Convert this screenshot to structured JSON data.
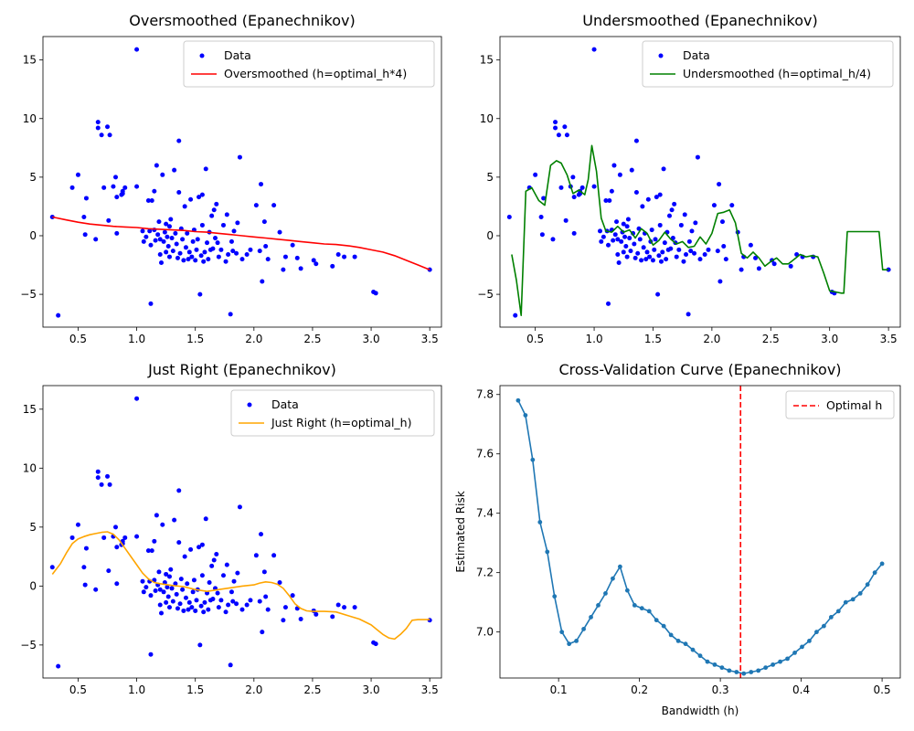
{
  "chart_data": [
    {
      "id": "oversmoothed",
      "type": "scatter",
      "title": "Oversmoothed (Epanechnikov)",
      "xlim": [
        0.2,
        3.6
      ],
      "ylim": [
        -7.8,
        17
      ],
      "xticks": [
        0.5,
        1.0,
        1.5,
        2.0,
        2.5,
        3.0,
        3.5
      ],
      "xticklabels": [
        "0.5",
        "1.0",
        "1.5",
        "2.0",
        "2.5",
        "3.0",
        "3.5"
      ],
      "yticks": [
        -5,
        0,
        5,
        10,
        15
      ],
      "yticklabels": [
        "−5",
        "0",
        "5",
        "10",
        "15"
      ],
      "legend_position": "top-right",
      "scatter_name": "Data",
      "scatter_color": "#0000ff",
      "curve_name": "Oversmoothed (h=optimal_h*4)",
      "curve_color": "#ff0000",
      "curve": [
        [
          0.28,
          1.6
        ],
        [
          0.4,
          1.35
        ],
        [
          0.5,
          1.15
        ],
        [
          0.6,
          1.0
        ],
        [
          0.7,
          0.9
        ],
        [
          0.8,
          0.8
        ],
        [
          0.9,
          0.75
        ],
        [
          1.0,
          0.7
        ],
        [
          1.1,
          0.6
        ],
        [
          1.2,
          0.55
        ],
        [
          1.3,
          0.5
        ],
        [
          1.4,
          0.45
        ],
        [
          1.5,
          0.35
        ],
        [
          1.6,
          0.3
        ],
        [
          1.7,
          0.2
        ],
        [
          1.8,
          0.1
        ],
        [
          1.9,
          0.0
        ],
        [
          2.0,
          -0.1
        ],
        [
          2.1,
          -0.2
        ],
        [
          2.2,
          -0.3
        ],
        [
          2.3,
          -0.4
        ],
        [
          2.4,
          -0.5
        ],
        [
          2.5,
          -0.6
        ],
        [
          2.6,
          -0.7
        ],
        [
          2.7,
          -0.75
        ],
        [
          2.8,
          -0.85
        ],
        [
          2.9,
          -1.0
        ],
        [
          3.0,
          -1.2
        ],
        [
          3.1,
          -1.4
        ],
        [
          3.2,
          -1.7
        ],
        [
          3.3,
          -2.1
        ],
        [
          3.4,
          -2.5
        ],
        [
          3.5,
          -2.9
        ]
      ]
    },
    {
      "id": "undersmoothed",
      "type": "scatter",
      "title": "Undersmoothed (Epanechnikov)",
      "xlim": [
        0.2,
        3.6
      ],
      "ylim": [
        -7.8,
        17
      ],
      "xticks": [
        0.5,
        1.0,
        1.5,
        2.0,
        2.5,
        3.0,
        3.5
      ],
      "xticklabels": [
        "0.5",
        "1.0",
        "1.5",
        "2.0",
        "2.5",
        "3.0",
        "3.5"
      ],
      "yticks": [
        -5,
        0,
        5,
        10,
        15
      ],
      "yticklabels": [
        "−5",
        "0",
        "5",
        "10",
        "15"
      ],
      "legend_position": "top-right",
      "scatter_name": "Data",
      "scatter_color": "#0000ff",
      "curve_name": "Undersmoothed (h=optimal_h/4)",
      "curve_color": "#008000",
      "curve": [
        [
          0.3,
          -1.6
        ],
        [
          0.34,
          -3.8
        ],
        [
          0.38,
          -6.8
        ],
        [
          0.42,
          3.8
        ],
        [
          0.47,
          4.1
        ],
        [
          0.53,
          3.0
        ],
        [
          0.58,
          2.6
        ],
        [
          0.63,
          6.0
        ],
        [
          0.68,
          6.4
        ],
        [
          0.72,
          6.2
        ],
        [
          0.77,
          5.2
        ],
        [
          0.82,
          3.6
        ],
        [
          0.87,
          3.9
        ],
        [
          0.92,
          3.5
        ],
        [
          0.95,
          4.8
        ],
        [
          0.98,
          7.7
        ],
        [
          1.02,
          5.5
        ],
        [
          1.06,
          1.5
        ],
        [
          1.1,
          0.4
        ],
        [
          1.15,
          0.3
        ],
        [
          1.2,
          0.8
        ],
        [
          1.25,
          0.3
        ],
        [
          1.3,
          0.5
        ],
        [
          1.35,
          -0.2
        ],
        [
          1.4,
          0.6
        ],
        [
          1.45,
          0.2
        ],
        [
          1.5,
          -0.8
        ],
        [
          1.55,
          -0.4
        ],
        [
          1.6,
          0.3
        ],
        [
          1.65,
          -0.3
        ],
        [
          1.7,
          -0.7
        ],
        [
          1.75,
          -0.5
        ],
        [
          1.8,
          -1.0
        ],
        [
          1.85,
          -0.9
        ],
        [
          1.9,
          -0.1
        ],
        [
          1.95,
          -0.7
        ],
        [
          2.0,
          0.2
        ],
        [
          2.05,
          1.9
        ],
        [
          2.1,
          2.0
        ],
        [
          2.15,
          2.2
        ],
        [
          2.2,
          1.1
        ],
        [
          2.25,
          -1.5
        ],
        [
          2.3,
          -1.9
        ],
        [
          2.35,
          -1.4
        ],
        [
          2.4,
          -1.9
        ],
        [
          2.45,
          -2.6
        ],
        [
          2.5,
          -2.2
        ],
        [
          2.55,
          -1.9
        ],
        [
          2.6,
          -2.4
        ],
        [
          2.65,
          -2.4
        ],
        [
          2.7,
          -2.0
        ],
        [
          2.75,
          -1.6
        ],
        [
          2.8,
          -1.8
        ],
        [
          2.85,
          -1.7
        ],
        [
          2.9,
          -1.8
        ],
        [
          2.95,
          -3.2
        ],
        [
          3.0,
          -4.7
        ],
        [
          3.05,
          -4.8
        ],
        [
          3.1,
          -4.9
        ],
        [
          3.12,
          -4.9
        ],
        [
          3.15,
          0.35
        ],
        [
          3.3,
          0.35
        ],
        [
          3.42,
          0.35
        ],
        [
          3.45,
          -2.9
        ],
        [
          3.5,
          -2.9
        ]
      ]
    },
    {
      "id": "justright",
      "type": "scatter",
      "title": "Just Right (Epanechnikov)",
      "xlim": [
        0.2,
        3.6
      ],
      "ylim": [
        -7.8,
        17
      ],
      "xticks": [
        0.5,
        1.0,
        1.5,
        2.0,
        2.5,
        3.0,
        3.5
      ],
      "xticklabels": [
        "0.5",
        "1.0",
        "1.5",
        "2.0",
        "2.5",
        "3.0",
        "3.5"
      ],
      "yticks": [
        -5,
        0,
        5,
        10,
        15
      ],
      "yticklabels": [
        "−5",
        "0",
        "5",
        "10",
        "15"
      ],
      "legend_position": "top-right",
      "scatter_name": "Data",
      "scatter_color": "#0000ff",
      "curve_name": "Just Right (h=optimal_h)",
      "curve_color": "#ffa500",
      "curve": [
        [
          0.28,
          1.0
        ],
        [
          0.35,
          1.9
        ],
        [
          0.4,
          2.8
        ],
        [
          0.45,
          3.6
        ],
        [
          0.5,
          4.0
        ],
        [
          0.55,
          4.2
        ],
        [
          0.6,
          4.35
        ],
        [
          0.65,
          4.45
        ],
        [
          0.7,
          4.55
        ],
        [
          0.75,
          4.6
        ],
        [
          0.8,
          4.4
        ],
        [
          0.85,
          3.9
        ],
        [
          0.9,
          3.2
        ],
        [
          0.95,
          2.5
        ],
        [
          1.0,
          1.8
        ],
        [
          1.05,
          1.1
        ],
        [
          1.1,
          0.6
        ],
        [
          1.15,
          0.3
        ],
        [
          1.2,
          0.2
        ],
        [
          1.3,
          0.05
        ],
        [
          1.4,
          -0.05
        ],
        [
          1.5,
          -0.3
        ],
        [
          1.6,
          -0.45
        ],
        [
          1.7,
          -0.3
        ],
        [
          1.8,
          -0.15
        ],
        [
          1.9,
          0.0
        ],
        [
          2.0,
          0.1
        ],
        [
          2.05,
          0.25
        ],
        [
          2.1,
          0.35
        ],
        [
          2.15,
          0.3
        ],
        [
          2.2,
          0.15
        ],
        [
          2.25,
          -0.2
        ],
        [
          2.3,
          -0.8
        ],
        [
          2.35,
          -1.5
        ],
        [
          2.4,
          -1.9
        ],
        [
          2.45,
          -2.1
        ],
        [
          2.5,
          -2.15
        ],
        [
          2.6,
          -2.15
        ],
        [
          2.7,
          -2.2
        ],
        [
          2.8,
          -2.5
        ],
        [
          2.9,
          -2.8
        ],
        [
          3.0,
          -3.3
        ],
        [
          3.05,
          -3.7
        ],
        [
          3.1,
          -4.1
        ],
        [
          3.15,
          -4.4
        ],
        [
          3.2,
          -4.5
        ],
        [
          3.25,
          -4.1
        ],
        [
          3.3,
          -3.6
        ],
        [
          3.35,
          -2.9
        ],
        [
          3.4,
          -2.85
        ],
        [
          3.5,
          -2.85
        ]
      ]
    },
    {
      "id": "cv",
      "type": "line",
      "title": "Cross-Validation Curve (Epanechnikov)",
      "xlabel": "Bandwidth (h)",
      "ylabel": "Estimated Risk",
      "xlim": [
        0.0275,
        0.5225
      ],
      "ylim": [
        6.845,
        7.83
      ],
      "xticks": [
        0.1,
        0.2,
        0.3,
        0.4,
        0.5
      ],
      "xticklabels": [
        "0.1",
        "0.2",
        "0.3",
        "0.4",
        "0.5"
      ],
      "yticks": [
        7.0,
        7.2,
        7.4,
        7.6,
        7.8
      ],
      "yticklabels": [
        "7.0",
        "7.2",
        "7.4",
        "7.6",
        "7.8"
      ],
      "legend_position": "top-right",
      "line_color": "#1f77b4",
      "vline_name": "Optimal h",
      "vline_color": "#ff0000",
      "vline_x": 0.325,
      "x": [
        0.05,
        0.059,
        0.068,
        0.077,
        0.086,
        0.095,
        0.104,
        0.113,
        0.122,
        0.131,
        0.14,
        0.149,
        0.158,
        0.167,
        0.176,
        0.185,
        0.194,
        0.203,
        0.212,
        0.221,
        0.23,
        0.239,
        0.248,
        0.257,
        0.266,
        0.275,
        0.284,
        0.293,
        0.302,
        0.311,
        0.32,
        0.329,
        0.338,
        0.347,
        0.356,
        0.365,
        0.374,
        0.383,
        0.392,
        0.401,
        0.41,
        0.419,
        0.428,
        0.437,
        0.446,
        0.455,
        0.464,
        0.473,
        0.482,
        0.491,
        0.5
      ],
      "y": [
        7.78,
        7.73,
        7.58,
        7.37,
        7.27,
        7.12,
        7.0,
        6.96,
        6.97,
        7.01,
        7.05,
        7.09,
        7.13,
        7.18,
        7.22,
        7.14,
        7.09,
        7.08,
        7.07,
        7.04,
        7.02,
        6.99,
        6.97,
        6.96,
        6.94,
        6.92,
        6.9,
        6.89,
        6.88,
        6.87,
        6.865,
        6.86,
        6.865,
        6.87,
        6.88,
        6.89,
        6.9,
        6.91,
        6.93,
        6.95,
        6.97,
        7.0,
        7.02,
        7.05,
        7.07,
        7.1,
        7.11,
        7.13,
        7.16,
        7.2,
        7.23
      ]
    }
  ],
  "scatter_points": [
    [
      0.28,
      1.6
    ],
    [
      0.33,
      -6.8
    ],
    [
      0.45,
      4.1
    ],
    [
      0.5,
      5.2
    ],
    [
      0.55,
      1.6
    ],
    [
      0.56,
      0.1
    ],
    [
      0.57,
      3.2
    ],
    [
      0.65,
      -0.3
    ],
    [
      0.67,
      9.7
    ],
    [
      0.67,
      9.2
    ],
    [
      0.7,
      8.6
    ],
    [
      0.72,
      4.1
    ],
    [
      0.75,
      9.3
    ],
    [
      0.76,
      1.3
    ],
    [
      0.77,
      8.6
    ],
    [
      0.8,
      4.2
    ],
    [
      0.82,
      5.0
    ],
    [
      0.83,
      3.3
    ],
    [
      0.83,
      0.2
    ],
    [
      0.87,
      3.5
    ],
    [
      0.88,
      3.6
    ],
    [
      0.88,
      3.8
    ],
    [
      0.9,
      4.1
    ],
    [
      1.0,
      15.9
    ],
    [
      1.0,
      4.2
    ],
    [
      1.05,
      0.4
    ],
    [
      1.06,
      -0.5
    ],
    [
      1.08,
      -0.1
    ],
    [
      1.1,
      3.0
    ],
    [
      1.11,
      0.4
    ],
    [
      1.12,
      -0.8
    ],
    [
      1.12,
      -5.8
    ],
    [
      1.13,
      3.0
    ],
    [
      1.15,
      3.8
    ],
    [
      1.15,
      0.5
    ],
    [
      1.16,
      -0.4
    ],
    [
      1.17,
      6.0
    ],
    [
      1.18,
      0.1
    ],
    [
      1.19,
      1.2
    ],
    [
      1.2,
      -0.3
    ],
    [
      1.2,
      -1.6
    ],
    [
      1.21,
      -2.3
    ],
    [
      1.22,
      5.2
    ],
    [
      1.23,
      -0.5
    ],
    [
      1.24,
      0.3
    ],
    [
      1.25,
      -1.4
    ],
    [
      1.25,
      1.0
    ],
    [
      1.26,
      -0.1
    ],
    [
      1.27,
      -0.9
    ],
    [
      1.28,
      0.8
    ],
    [
      1.28,
      -1.8
    ],
    [
      1.29,
      1.4
    ],
    [
      1.3,
      -0.2
    ],
    [
      1.31,
      -1.3
    ],
    [
      1.32,
      5.6
    ],
    [
      1.33,
      0.2
    ],
    [
      1.34,
      -0.7
    ],
    [
      1.35,
      -1.9
    ],
    [
      1.36,
      8.1
    ],
    [
      1.36,
      3.7
    ],
    [
      1.37,
      -1.5
    ],
    [
      1.38,
      0.6
    ],
    [
      1.39,
      -0.3
    ],
    [
      1.4,
      -2.1
    ],
    [
      1.41,
      2.5
    ],
    [
      1.42,
      -1.0
    ],
    [
      1.43,
      0.2
    ],
    [
      1.44,
      -2.0
    ],
    [
      1.45,
      -1.4
    ],
    [
      1.46,
      3.1
    ],
    [
      1.47,
      -1.8
    ],
    [
      1.48,
      -0.5
    ],
    [
      1.49,
      0.5
    ],
    [
      1.5,
      -2.1
    ],
    [
      1.51,
      -1.2
    ],
    [
      1.52,
      -0.3
    ],
    [
      1.53,
      3.3
    ],
    [
      1.54,
      -5.0
    ],
    [
      1.55,
      -1.7
    ],
    [
      1.56,
      3.5
    ],
    [
      1.56,
      0.9
    ],
    [
      1.57,
      -2.2
    ],
    [
      1.58,
      -1.4
    ],
    [
      1.59,
      5.7
    ],
    [
      1.6,
      -0.6
    ],
    [
      1.61,
      -2.0
    ],
    [
      1.62,
      0.3
    ],
    [
      1.63,
      -1.2
    ],
    [
      1.64,
      1.7
    ],
    [
      1.65,
      -1.1
    ],
    [
      1.66,
      2.2
    ],
    [
      1.67,
      -0.2
    ],
    [
      1.68,
      2.7
    ],
    [
      1.69,
      -0.6
    ],
    [
      1.7,
      -1.8
    ],
    [
      1.72,
      -1.2
    ],
    [
      1.74,
      0.9
    ],
    [
      1.76,
      -2.2
    ],
    [
      1.77,
      1.8
    ],
    [
      1.78,
      -1.6
    ],
    [
      1.8,
      -6.7
    ],
    [
      1.81,
      -0.5
    ],
    [
      1.82,
      -1.3
    ],
    [
      1.83,
      0.4
    ],
    [
      1.85,
      -1.5
    ],
    [
      1.86,
      1.1
    ],
    [
      1.88,
      6.7
    ],
    [
      1.9,
      -2.0
    ],
    [
      1.94,
      -1.6
    ],
    [
      1.97,
      -1.2
    ],
    [
      2.02,
      2.6
    ],
    [
      2.05,
      -1.3
    ],
    [
      2.06,
      4.4
    ],
    [
      2.07,
      -3.9
    ],
    [
      2.09,
      1.2
    ],
    [
      2.1,
      -0.9
    ],
    [
      2.12,
      -2.0
    ],
    [
      2.17,
      2.6
    ],
    [
      2.22,
      0.3
    ],
    [
      2.25,
      -2.9
    ],
    [
      2.27,
      -1.8
    ],
    [
      2.33,
      -0.8
    ],
    [
      2.37,
      -1.9
    ],
    [
      2.4,
      -2.8
    ],
    [
      2.51,
      -2.1
    ],
    [
      2.53,
      -2.4
    ],
    [
      2.67,
      -2.6
    ],
    [
      2.72,
      -1.6
    ],
    [
      2.77,
      -1.8
    ],
    [
      2.86,
      -1.8
    ],
    [
      3.02,
      -4.8
    ],
    [
      3.04,
      -4.9
    ],
    [
      3.5,
      -2.9
    ]
  ]
}
